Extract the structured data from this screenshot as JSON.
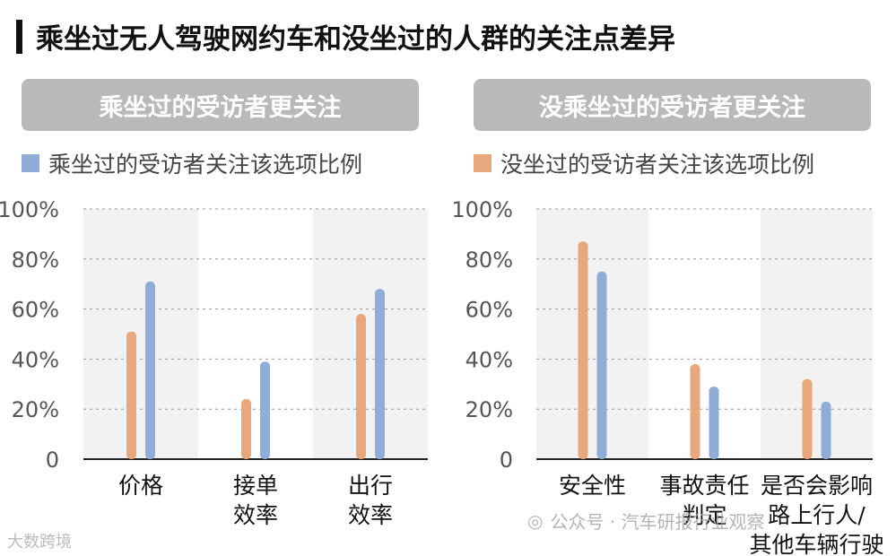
{
  "title": "乘坐过无人驾驶网约车和没坐过的人群的关注点差异",
  "panels": [
    {
      "header": "乘坐过的受访者更关注",
      "legend": "乘坐过的受访者关注该选项比例"
    },
    {
      "header": "没乘坐过的受访者更关注",
      "legend": "没坐过的受访者关注该选项比例"
    }
  ],
  "colors": {
    "orange": "#e8a87c",
    "blue": "#8fadd6",
    "header_bg": "#b9b9b9",
    "band": "#f2f2f2"
  },
  "chart_data": [
    {
      "type": "bar",
      "categories": [
        "价格",
        "接单\n效率",
        "出行\n效率"
      ],
      "series": [
        {
          "color": "orange",
          "values": [
            51,
            24,
            58
          ]
        },
        {
          "name": "乘坐过的受访者关注该选项比例",
          "color": "blue",
          "values": [
            71,
            39,
            68
          ]
        }
      ],
      "ylim": [
        0,
        100
      ],
      "yticks": [
        "0",
        "20%",
        "40%",
        "60%",
        "80%",
        "100%"
      ],
      "grid": true
    },
    {
      "type": "bar",
      "categories": [
        "安全性",
        "事故责任\n判定",
        "是否会影响\n路上行人/\n其他车辆行驶"
      ],
      "series": [
        {
          "name": "没坐过的受访者关注该选项比例",
          "color": "orange",
          "values": [
            87,
            38,
            32
          ]
        },
        {
          "color": "blue",
          "values": [
            75,
            29,
            23
          ]
        }
      ],
      "ylim": [
        0,
        100
      ],
      "yticks": [
        "0",
        "20%",
        "40%",
        "60%",
        "80%",
        "100%"
      ],
      "grid": true
    }
  ],
  "watermark": {
    "left": "大数跨境",
    "right": "公众号 · 汽车研报行业观察"
  }
}
